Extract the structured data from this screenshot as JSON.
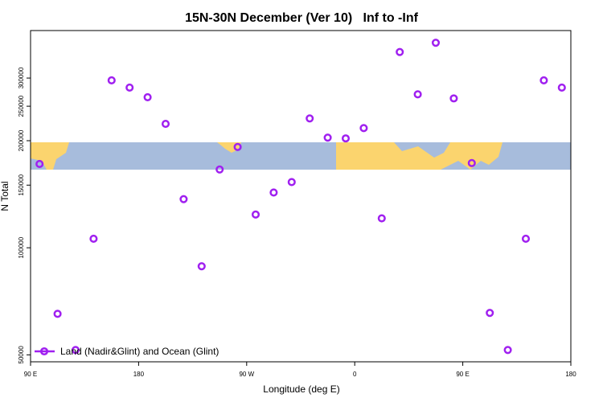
{
  "chart_data": {
    "type": "scatter",
    "title": "15N-30N December (Ver 10)   Inf to -Inf",
    "xlabel": "Longitude (deg E)",
    "ylabel": "N Total",
    "x": [
      97.5,
      112.5,
      127.5,
      142.5,
      157.5,
      172.5,
      187.5,
      202.5,
      217.5,
      232.5,
      247.5,
      262.5,
      277.5,
      292.5,
      307.5,
      322.5,
      337.5,
      352.5,
      367.5,
      382.5,
      397.5,
      412.5,
      427.5,
      442.5,
      457.5,
      472.5,
      487.5,
      502.5,
      517.5,
      532.5
    ],
    "series": [
      {
        "name": "Land (Nadir&Glint) and Ocean (Glint)",
        "color": "#a020f0",
        "values": [
          172000,
          65200,
          51600,
          106000,
          295500,
          282000,
          265000,
          223000,
          137000,
          88700,
          166000,
          192000,
          124000,
          143000,
          153000,
          231000,
          204000,
          203000,
          217000,
          121000,
          355000,
          270000,
          377000,
          263000,
          173000,
          65600,
          51600,
          106000,
          295500,
          282000
        ]
      }
    ],
    "xlim": [
      90,
      540
    ],
    "xticks": [
      {
        "value": 90,
        "label": "90 E"
      },
      180,
      {
        "value": 270,
        "label": "90 W"
      },
      {
        "value": 360,
        "label": "0"
      },
      {
        "value": 450,
        "label": "90 E"
      },
      {
        "value": 540,
        "label": "180"
      }
    ],
    "ylim": [
      47800,
      408000
    ],
    "ylog": true,
    "yticks": [
      50000,
      100000,
      150000,
      200000,
      250000,
      300000
    ],
    "legend": "lower left"
  }
}
